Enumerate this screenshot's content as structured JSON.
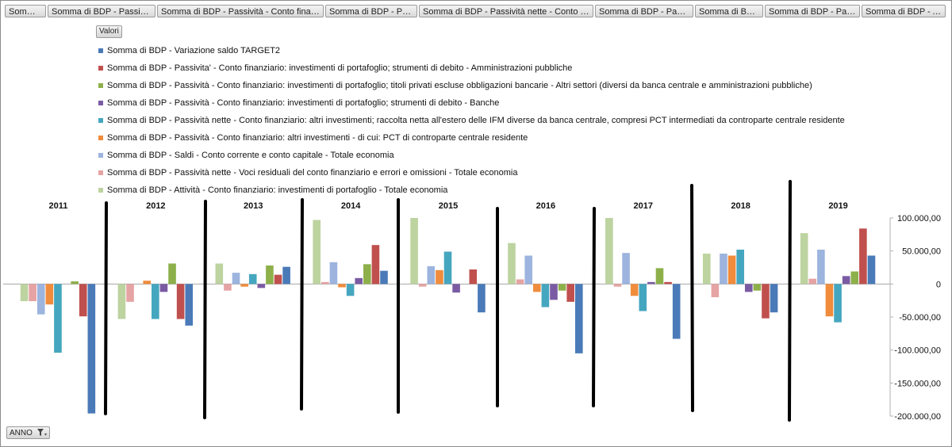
{
  "field_buttons": [
    "Somma ...",
    "Somma di BDP - Passivita' - ...",
    "Somma di BDP - Passività - Conto finanziario:...",
    "Somma di BDP - Passivit...",
    "Somma di BDP - Passività nette - Conto finanzia...",
    "Somma di BDP - Passività ...",
    "Somma di BDP - ...",
    "Somma di BDP - Passivit...",
    "Somma di BDP - Atti..."
  ],
  "values_button": "Valori",
  "axis_field_button": "ANNO",
  "colors": {
    "border": "#8c8c8c",
    "separator": "#000000"
  },
  "chart_data": {
    "type": "bar",
    "categories": [
      "2011",
      "2012",
      "2013",
      "2014",
      "2015",
      "2016",
      "2017",
      "2018",
      "2019"
    ],
    "ylim": [
      -200000,
      100000
    ],
    "yticks": [
      {
        "value": 100000,
        "label": "100.000,00"
      },
      {
        "value": 50000,
        "label": "50.000,00"
      },
      {
        "value": 0,
        "label": "0"
      },
      {
        "value": -50000,
        "label": "-50.000,00"
      },
      {
        "value": -100000,
        "label": "-100.000,00"
      },
      {
        "value": -150000,
        "label": "-150.000,00"
      },
      {
        "value": -200000,
        "label": "-200.000,00"
      }
    ],
    "legend_position": "top-left",
    "series": [
      {
        "name": "Somma di BDP - Variazione saldo TARGET2",
        "color": "#4a7ab8",
        "values": [
          -196000,
          -63000,
          26000,
          20000,
          -43000,
          -105000,
          -83000,
          -43000,
          43000
        ]
      },
      {
        "name": "Somma di BDP - Passivita' - Conto finanziario: investimenti di portafoglio; strumenti di debito - Amministrazioni pubbliche",
        "color": "#c0504d",
        "values": [
          -49000,
          -53000,
          14000,
          59000,
          22000,
          -27000,
          3000,
          -52000,
          84000
        ]
      },
      {
        "name": "Somma di BDP - Passività - Conto finanziario: investimenti di portafoglio; titoli privati escluse obbligazioni bancarie - Altri settori (diversi da banca centrale e amministrazioni pubbliche)",
        "color": "#8db04a",
        "values": [
          4000,
          31000,
          28000,
          30000,
          0,
          -10000,
          24000,
          -10000,
          19000
        ]
      },
      {
        "name": "Somma di BDP - Passività - Conto finanziario: investimenti di portafoglio; strumenti di debito - Banche",
        "color": "#7a5ba3",
        "values": [
          0,
          -12000,
          -6000,
          9000,
          -13000,
          -24000,
          3000,
          -12000,
          12000
        ]
      },
      {
        "name": "Somma di BDP - Passività nette - Conto finanziario: altri investimenti; raccolta netta all'estero delle IFM diverse da banca centrale, compresi PCT intermediati da controparte centrale residente",
        "color": "#45a6bf",
        "values": [
          -104000,
          -53000,
          15000,
          -18000,
          49000,
          -35000,
          -41000,
          52000,
          -58000
        ]
      },
      {
        "name": "Somma di BDP - Passività - Conto finanziario: altri investimenti - di cui: PCT di controparte centrale residente",
        "color": "#f08c3c",
        "values": [
          -31000,
          5000,
          -4000,
          -5000,
          21000,
          -12000,
          -18000,
          43000,
          -49000
        ]
      },
      {
        "name": "Somma di BDP - Saldi - Conto corrente e conto capitale - Totale economia",
        "color": "#9cb4de",
        "values": [
          -46000,
          0,
          17000,
          33000,
          27000,
          43000,
          47000,
          46000,
          52000
        ]
      },
      {
        "name": "Somma di BDP - Passività nette - Voci residuali del conto finanziario e errori e omissioni - Totale economia",
        "color": "#e6a3a3",
        "values": [
          -26000,
          -27000,
          -10000,
          3000,
          -4000,
          7000,
          -4000,
          -20000,
          8000
        ]
      },
      {
        "name": "Somma di BDP - Attività - Conto finanziario: investimenti di portafoglio - Totale economia",
        "color": "#bdd3a0",
        "values": [
          -26000,
          -53000,
          31000,
          97000,
          100000,
          62000,
          100000,
          46000,
          77000
        ]
      }
    ]
  }
}
